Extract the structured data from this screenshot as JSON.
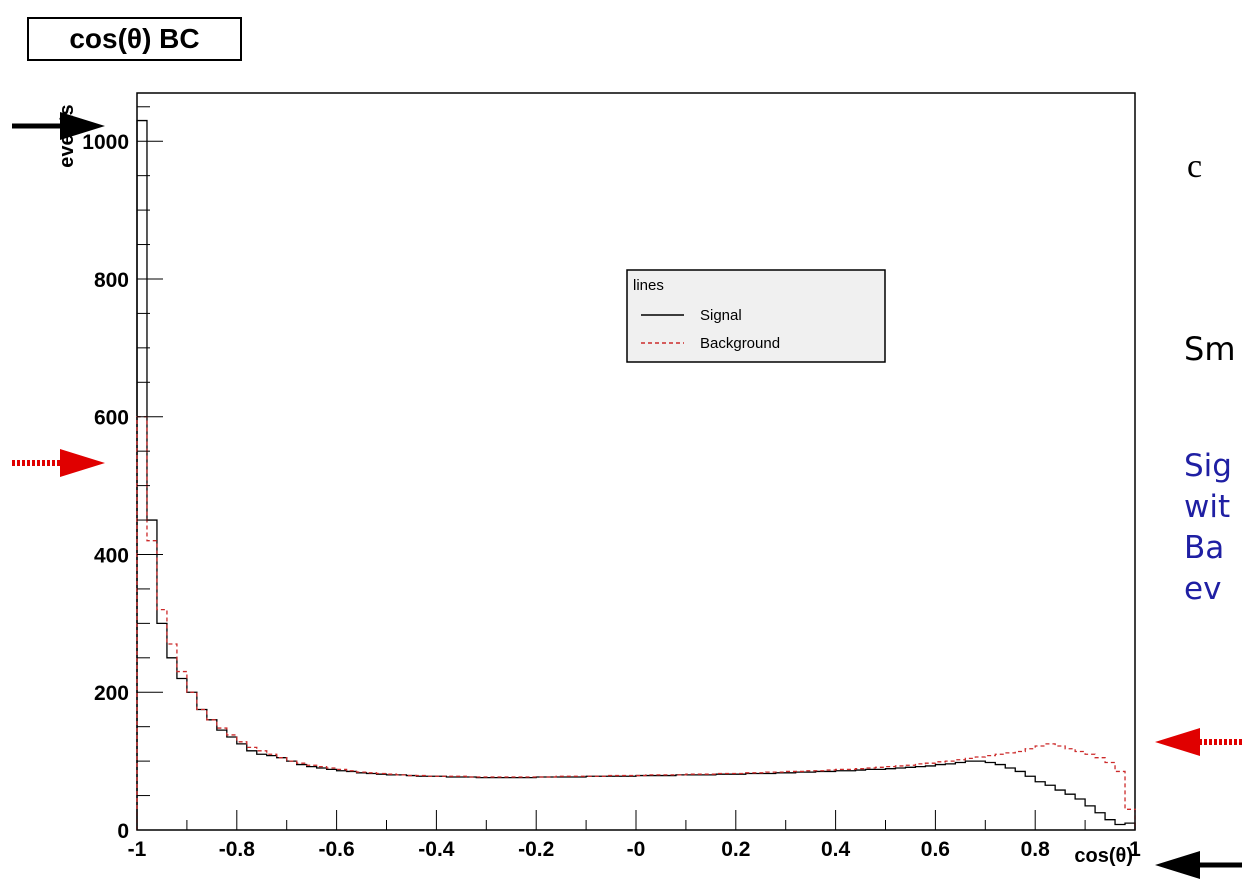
{
  "chart_data": {
    "type": "line",
    "title": "cos(θ) BC",
    "xlabel": "cos(θ)",
    "ylabel": "events",
    "xlim": [
      -1,
      1
    ],
    "ylim": [
      0,
      1070
    ],
    "x_ticks": [
      "-1",
      "-0.8",
      "-0.6",
      "-0.4",
      "-0.2",
      "-0",
      "0.2",
      "0.4",
      "0.6",
      "0.8",
      "1"
    ],
    "y_ticks": [
      "0",
      "200",
      "400",
      "600",
      "800",
      "1000"
    ],
    "grid": false,
    "legend_title": "lines",
    "legend_position": "top-center",
    "x": [
      -0.99,
      -0.97,
      -0.95,
      -0.93,
      -0.91,
      -0.89,
      -0.87,
      -0.85,
      -0.83,
      -0.81,
      -0.79,
      -0.77,
      -0.75,
      -0.73,
      -0.71,
      -0.69,
      -0.67,
      -0.65,
      -0.63,
      -0.61,
      -0.59,
      -0.57,
      -0.55,
      -0.53,
      -0.51,
      -0.49,
      -0.47,
      -0.45,
      -0.43,
      -0.41,
      -0.39,
      -0.37,
      -0.35,
      -0.33,
      -0.31,
      -0.29,
      -0.27,
      -0.25,
      -0.23,
      -0.21,
      -0.19,
      -0.17,
      -0.15,
      -0.13,
      -0.11,
      -0.09,
      -0.07,
      -0.05,
      -0.03,
      -0.01,
      0.01,
      0.03,
      0.05,
      0.07,
      0.09,
      0.11,
      0.13,
      0.15,
      0.17,
      0.19,
      0.21,
      0.23,
      0.25,
      0.27,
      0.29,
      0.31,
      0.33,
      0.35,
      0.37,
      0.39,
      0.41,
      0.43,
      0.45,
      0.47,
      0.49,
      0.51,
      0.53,
      0.55,
      0.57,
      0.59,
      0.61,
      0.63,
      0.65,
      0.67,
      0.69,
      0.71,
      0.73,
      0.75,
      0.77,
      0.79,
      0.81,
      0.83,
      0.85,
      0.87,
      0.89,
      0.91,
      0.93,
      0.95,
      0.97,
      0.99
    ],
    "series": [
      {
        "name": "Signal",
        "color": "#000000",
        "style": "solid",
        "values": [
          1030,
          450,
          300,
          250,
          220,
          200,
          175,
          160,
          145,
          135,
          125,
          115,
          110,
          108,
          105,
          100,
          95,
          92,
          90,
          88,
          86,
          85,
          83,
          82,
          81,
          80,
          80,
          79,
          78,
          78,
          78,
          77,
          77,
          77,
          76,
          76,
          76,
          76,
          76,
          76,
          77,
          77,
          77,
          77,
          77,
          78,
          78,
          78,
          78,
          78,
          79,
          79,
          79,
          79,
          80,
          80,
          80,
          80,
          81,
          81,
          81,
          82,
          82,
          82,
          83,
          83,
          84,
          84,
          85,
          85,
          86,
          86,
          87,
          88,
          88,
          89,
          90,
          91,
          92,
          93,
          95,
          96,
          98,
          100,
          100,
          98,
          95,
          90,
          85,
          78,
          70,
          65,
          58,
          52,
          45,
          35,
          25,
          15,
          8,
          10
        ]
      },
      {
        "name": "Background",
        "color": "#cc2a2a",
        "style": "dashed",
        "values": [
          600,
          420,
          320,
          270,
          230,
          200,
          175,
          160,
          148,
          138,
          128,
          120,
          115,
          110,
          105,
          100,
          97,
          94,
          92,
          90,
          88,
          86,
          84,
          83,
          82,
          81,
          80,
          79,
          79,
          78,
          78,
          78,
          78,
          77,
          77,
          77,
          77,
          77,
          77,
          77,
          77,
          77,
          78,
          78,
          78,
          78,
          78,
          79,
          79,
          79,
          79,
          80,
          80,
          80,
          80,
          81,
          81,
          81,
          82,
          82,
          82,
          83,
          83,
          84,
          84,
          85,
          85,
          86,
          86,
          87,
          88,
          88,
          89,
          90,
          91,
          92,
          93,
          94,
          96,
          97,
          99,
          100,
          102,
          104,
          106,
          108,
          110,
          112,
          114,
          118,
          122,
          125,
          122,
          118,
          114,
          110,
          105,
          98,
          85,
          30
        ]
      }
    ]
  },
  "side_text": {
    "c": "c",
    "sm": "Sm",
    "blue_lines": [
      "Sig",
      "wit",
      "Ba",
      "ev"
    ]
  },
  "colors": {
    "signal_arrow": "#000000",
    "background_arrow": "#e00000",
    "side_blue": "#1f1fa3"
  }
}
